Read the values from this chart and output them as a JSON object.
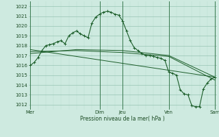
{
  "bg_color": "#ceeae0",
  "grid_color_minor": "#b8ddd0",
  "grid_color_major": "#88bba8",
  "line_color": "#1a5c28",
  "marker_color": "#1a5c28",
  "ylabel_values": [
    1012,
    1013,
    1014,
    1015,
    1016,
    1017,
    1018,
    1019,
    1020,
    1021,
    1022
  ],
  "ylim": [
    1011.5,
    1022.5
  ],
  "xlabel": "Pression niveau de la mer( hPa )",
  "vline_color": "#3a7a50",
  "series1_x": [
    0,
    4,
    8,
    12,
    16,
    20,
    24,
    28,
    32,
    36,
    40,
    44,
    48,
    52,
    56,
    60,
    64,
    68,
    72,
    76,
    80,
    84,
    88,
    92,
    96,
    100,
    104,
    108,
    112,
    116,
    120,
    124,
    128,
    132,
    136,
    140,
    144,
    148,
    152,
    156,
    160,
    164,
    168,
    172,
    176,
    180,
    184,
    188,
    192
  ],
  "series1_y": [
    1016.0,
    1016.3,
    1016.8,
    1017.5,
    1018.0,
    1018.1,
    1018.2,
    1018.4,
    1018.5,
    1018.2,
    1019.0,
    1019.3,
    1019.5,
    1019.2,
    1019.0,
    1018.8,
    1020.3,
    1020.9,
    1021.2,
    1021.4,
    1021.5,
    1021.4,
    1021.2,
    1021.1,
    1020.5,
    1019.5,
    1018.5,
    1017.8,
    1017.5,
    1017.2,
    1017.0,
    1017.0,
    1016.9,
    1016.8,
    1016.7,
    1016.5,
    1015.3,
    1015.2,
    1015.0,
    1013.5,
    1013.1,
    1013.0,
    1011.9,
    1011.8,
    1011.8,
    1013.6,
    1014.2,
    1014.6,
    1014.8
  ],
  "series2_x": [
    0,
    48,
    96,
    144,
    192
  ],
  "series2_y": [
    1017.2,
    1017.6,
    1017.5,
    1017.0,
    1014.8
  ],
  "series3_x": [
    0,
    48,
    96,
    144,
    192
  ],
  "series3_y": [
    1017.4,
    1017.5,
    1017.3,
    1016.9,
    1014.5
  ],
  "series4_x": [
    0,
    192
  ],
  "series4_y": [
    1017.6,
    1014.8
  ],
  "xtick_positions": [
    0,
    72,
    96,
    144,
    192
  ],
  "xtick_labels": [
    "Mer",
    "Dim",
    "Jeu",
    "Ven",
    "Sam"
  ],
  "vlines": [
    0,
    72,
    96,
    144,
    192
  ]
}
